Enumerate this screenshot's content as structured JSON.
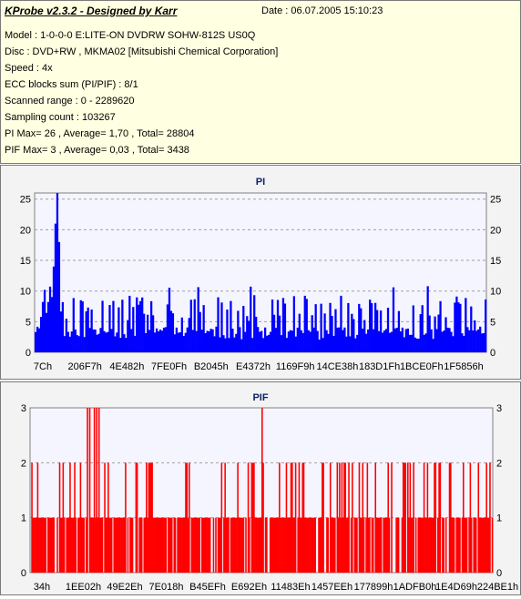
{
  "header": {
    "app_title": "KProbe v2.3.2 - Designed by Karr",
    "date": "Date : 06.07.2005 15:10:23"
  },
  "info_lines": [
    "Model : 1-0-0-0 E:LITE-ON DVDRW SOHW-812S  US0Q",
    "Disc : DVD+RW , MKMA02 [Mitsubishi Chemical Corporation]",
    "Speed : 4x",
    "ECC blocks sum (PI/PIF) : 8/1",
    "Scanned range : 0 - 2289620",
    "Sampling count : 103267",
    "PI Max= 26 , Average= 1,70 , Total= 28804",
    "PIF Max= 3 , Average= 0,03 , Total= 3438"
  ],
  "chart_data": [
    {
      "type": "bar",
      "title": "PI",
      "color": "#0000ff",
      "ylim": [
        0,
        26
      ],
      "yticks": [
        0,
        5,
        10,
        15,
        20,
        25
      ],
      "x_tick_labels": [
        "7Ch",
        "206F7h",
        "4E482h",
        "7FE0Fh",
        "B2045h",
        "E4372h",
        "1169F9h",
        "14CE38h",
        "183D1Fh",
        "1BCE0Fh",
        "1F5856h"
      ],
      "grid": true,
      "max": 26,
      "average": 1.7,
      "total": 28804
    },
    {
      "type": "bar",
      "title": "PIF",
      "color": "#ff0000",
      "ylim": [
        0,
        3
      ],
      "yticks": [
        0,
        1,
        2,
        3
      ],
      "x_tick_labels": [
        "34h",
        "1EE02h",
        "49E2Eh",
        "7E018h",
        "B45EFh",
        "E692Eh",
        "11483Eh",
        "1457EEh",
        "177899h",
        "1ADFB0h",
        "1E4D69h",
        "224BE1h"
      ],
      "grid": true,
      "max": 3,
      "average": 0.03,
      "total": 3438
    }
  ]
}
